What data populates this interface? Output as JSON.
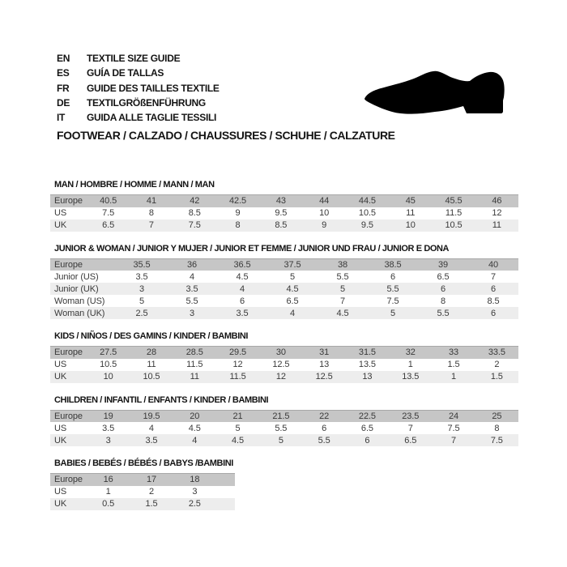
{
  "language_guide": {
    "items": [
      {
        "code": "EN",
        "label": "TEXTILE SIZE GUIDE"
      },
      {
        "code": "ES",
        "label": "GUÍA DE TALLAS"
      },
      {
        "code": "FR",
        "label": "GUIDE DES TAILLES TEXTILE"
      },
      {
        "code": "DE",
        "label": "TEXTILGRÖßENFÜHRUNG"
      },
      {
        "code": "IT",
        "label": "GUIDA ALLE TAGLIE TESSILI"
      }
    ]
  },
  "category_header": "FOOTWEAR / CALZADO / CHAUSSURES / SCHUHE / CALZATURE",
  "shoe_icon": "dress-shoe-silhouette",
  "size_tables": [
    {
      "title": "MAN / HOMBRE / HOMME / MANN / MAN",
      "rows": [
        {
          "label": "Europe",
          "emphasis": "dark",
          "values": [
            "40.5",
            "41",
            "42",
            "42.5",
            "43",
            "44",
            "44.5",
            "45",
            "45.5",
            "46"
          ]
        },
        {
          "label": "US",
          "emphasis": "none",
          "values": [
            "7.5",
            "8",
            "8.5",
            "9",
            "9.5",
            "10",
            "10.5",
            "11",
            "11.5",
            "12"
          ]
        },
        {
          "label": "UK",
          "emphasis": "light",
          "values": [
            "6.5",
            "7",
            "7.5",
            "8",
            "8.5",
            "9",
            "9.5",
            "10",
            "10.5",
            "11"
          ]
        }
      ]
    },
    {
      "title": "JUNIOR & WOMAN / JUNIOR Y MUJER / JUNIOR ET FEMME / JUNIOR UND FRAU / JUNIOR E DONA",
      "rows": [
        {
          "label": "Europe",
          "emphasis": "dark",
          "values": [
            "35.5",
            "36",
            "36.5",
            "37.5",
            "38",
            "38.5",
            "39",
            "40"
          ]
        },
        {
          "label": "Junior (US)",
          "emphasis": "none",
          "values": [
            "3.5",
            "4",
            "4.5",
            "5",
            "5.5",
            "6",
            "6.5",
            "7"
          ]
        },
        {
          "label": "Junior (UK)",
          "emphasis": "light",
          "values": [
            "3",
            "3.5",
            "4",
            "4.5",
            "5",
            "5.5",
            "6",
            "6"
          ]
        },
        {
          "label": "Woman (US)",
          "emphasis": "none",
          "values": [
            "5",
            "5.5",
            "6",
            "6.5",
            "7",
            "7.5",
            "8",
            "8.5"
          ]
        },
        {
          "label": "Woman (UK)",
          "emphasis": "light",
          "values": [
            "2.5",
            "3",
            "3.5",
            "4",
            "4.5",
            "5",
            "5.5",
            "6"
          ]
        }
      ]
    },
    {
      "title": "KIDS / NIÑOS / DES GAMINS / KINDER / BAMBINI",
      "rows": [
        {
          "label": "Europe",
          "emphasis": "dark",
          "values": [
            "27.5",
            "28",
            "28.5",
            "29.5",
            "30",
            "31",
            "31.5",
            "32",
            "33",
            "33.5"
          ]
        },
        {
          "label": "US",
          "emphasis": "none",
          "values": [
            "10.5",
            "11",
            "11.5",
            "12",
            "12.5",
            "13",
            "13.5",
            "1",
            "1.5",
            "2"
          ]
        },
        {
          "label": "UK",
          "emphasis": "light",
          "values": [
            "10",
            "10.5",
            "11",
            "11.5",
            "12",
            "12.5",
            "13",
            "13.5",
            "1",
            "1.5"
          ]
        }
      ]
    },
    {
      "title": "CHILDREN / INFANTIL / ENFANTS / KINDER / BAMBINI",
      "rows": [
        {
          "label": "Europe",
          "emphasis": "dark",
          "values": [
            "19",
            "19.5",
            "20",
            "21",
            "21.5",
            "22",
            "22.5",
            "23.5",
            "24",
            "25"
          ]
        },
        {
          "label": "US",
          "emphasis": "none",
          "values": [
            "3.5",
            "4",
            "4.5",
            "5",
            "5.5",
            "6",
            "6.5",
            "7",
            "7.5",
            "8"
          ]
        },
        {
          "label": "UK",
          "emphasis": "light",
          "values": [
            "3",
            "3.5",
            "4",
            "4.5",
            "5",
            "5.5",
            "6",
            "6.5",
            "7",
            "7.5"
          ]
        }
      ]
    },
    {
      "title": "BABIES  / BEBÉS / BÉBÉS / BABYS /BAMBINI",
      "rows": [
        {
          "label": "Europe",
          "emphasis": "dark",
          "values": [
            "16",
            "17",
            "18"
          ]
        },
        {
          "label": "US",
          "emphasis": "none",
          "values": [
            "1",
            "2",
            "3"
          ]
        },
        {
          "label": "UK",
          "emphasis": "light",
          "values": [
            "0.5",
            "1.5",
            "2.5"
          ]
        }
      ]
    }
  ],
  "colors": {
    "header_row_bg": "#c6c6c6",
    "alt_row_bg": "#ededed",
    "header_row_border": "#a8a8a8",
    "text": "#3a3a3a",
    "title_text": "#141414",
    "shoe": "#000000"
  }
}
